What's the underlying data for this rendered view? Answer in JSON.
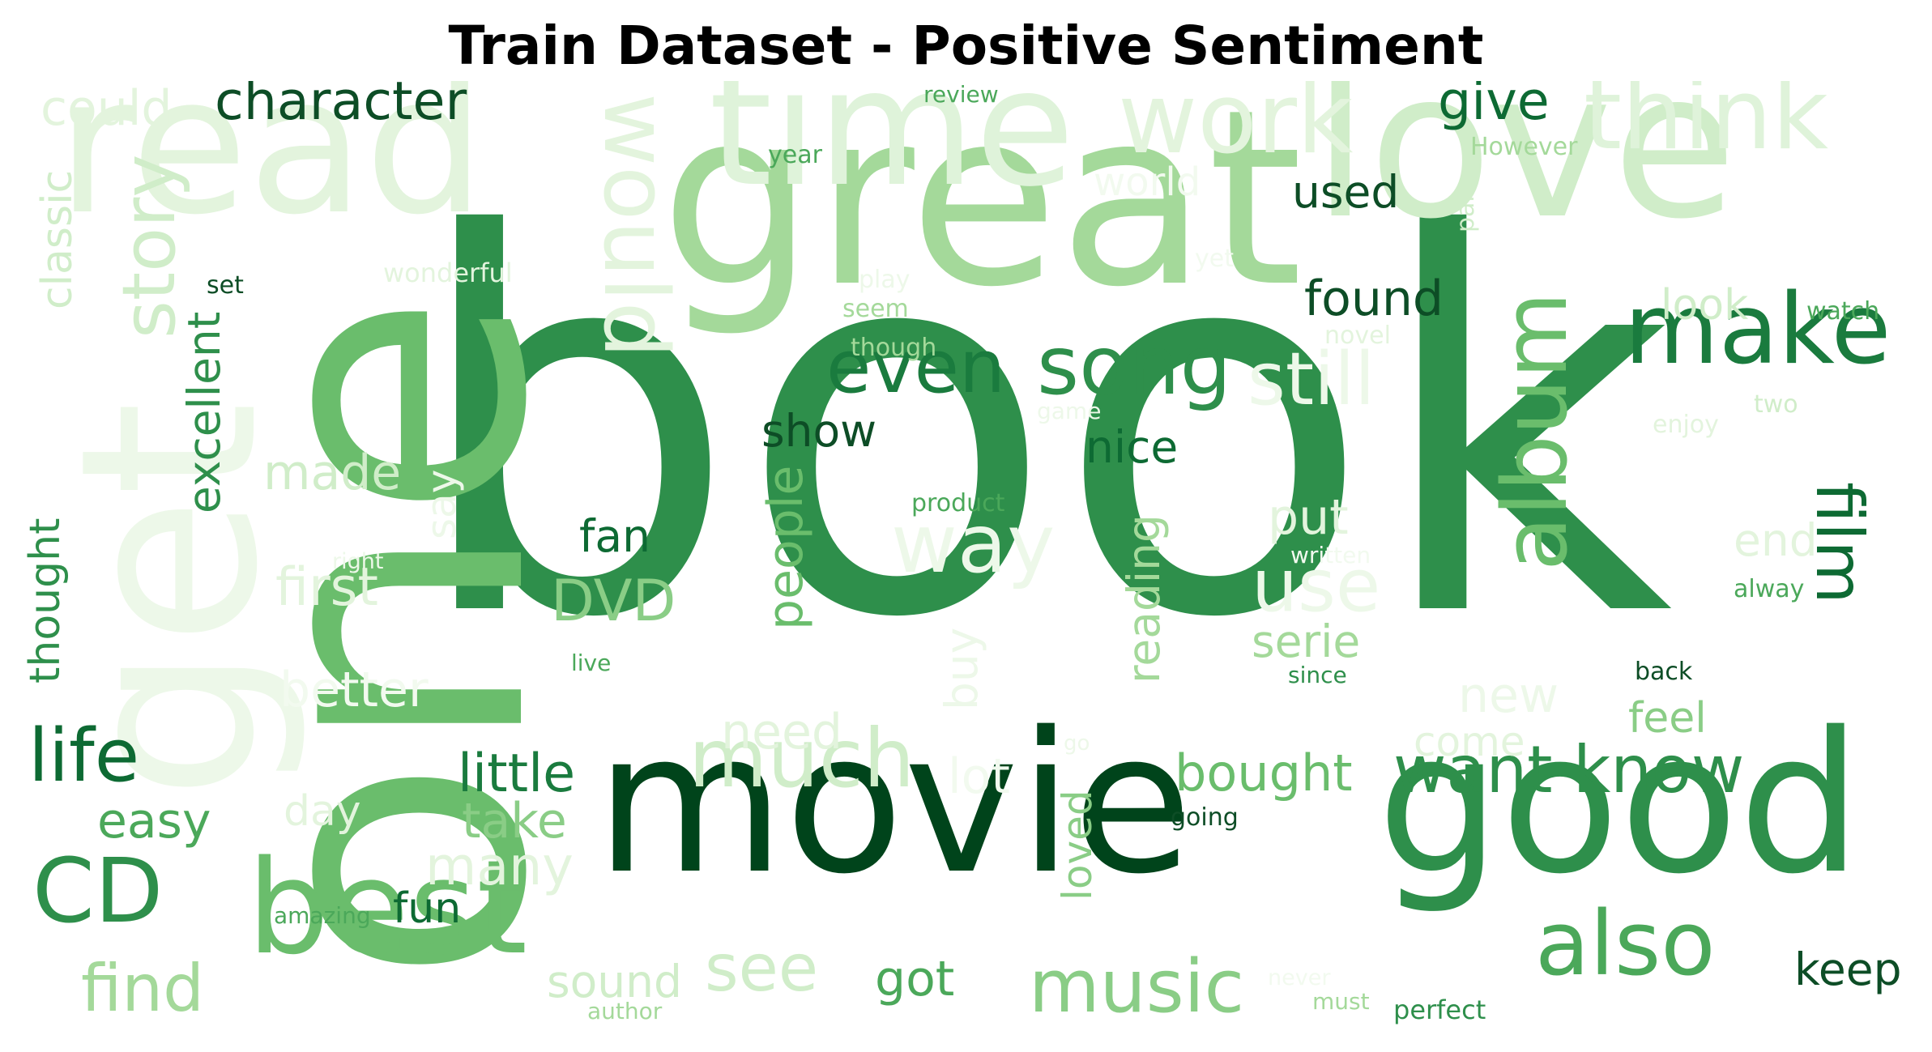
{
  "title": "Train Dataset - Positive Sentiment",
  "words": [
    {
      "text": "book",
      "color": "#2e8f4b",
      "rot": 0
    },
    {
      "text": "movie",
      "color": "#00441b",
      "rot": 0
    },
    {
      "text": "one",
      "color": "#6abd6c",
      "rot": -90
    },
    {
      "text": "great",
      "color": "#a4d99a",
      "rot": 0
    },
    {
      "text": "love",
      "color": "#d0edc9",
      "rot": 0
    },
    {
      "text": "read",
      "color": "#e3f4dd",
      "rot": 0
    },
    {
      "text": "good",
      "color": "#2e8f4b",
      "rot": 0
    },
    {
      "text": "time",
      "color": "#dff3da",
      "rot": 0
    },
    {
      "text": "get",
      "color": "#edf8e9",
      "rot": -90
    },
    {
      "text": "best",
      "color": "#6abd6c",
      "rot": 0
    },
    {
      "text": "make",
      "color": "#1a7b3e",
      "rot": 0
    },
    {
      "text": "album",
      "color": "#6abd6c",
      "rot": -90
    },
    {
      "text": "work",
      "color": "#e3f4dd",
      "rot": 0
    },
    {
      "text": "think",
      "color": "#dff3da",
      "rot": 0
    },
    {
      "text": "would",
      "color": "#e3f4dd",
      "rot": 90
    },
    {
      "text": "song",
      "color": "#2e8f4b",
      "rot": 0
    },
    {
      "text": "even",
      "color": "#1a7b3e",
      "rot": 0
    },
    {
      "text": "still",
      "color": "#edf8e9",
      "rot": 0
    },
    {
      "text": "story",
      "color": "#d0edc9",
      "rot": -90
    },
    {
      "text": "want know",
      "color": "#2e8f4b",
      "rot": 0
    },
    {
      "text": "also",
      "color": "#4ba85a",
      "rot": 0
    },
    {
      "text": "music",
      "color": "#8acd86",
      "rot": 0
    },
    {
      "text": "much",
      "color": "#d0edc9",
      "rot": 0
    },
    {
      "text": "CD",
      "color": "#2e8f4b",
      "rot": 0
    },
    {
      "text": "see",
      "color": "#d0edc9",
      "rot": 0
    },
    {
      "text": "film",
      "color": "#0d6a33",
      "rot": 90
    },
    {
      "text": "life",
      "color": "#0d6a33",
      "rot": 0
    },
    {
      "text": "find",
      "color": "#a4d99a",
      "rot": 0
    },
    {
      "text": "way",
      "color": "#edf8e9",
      "rot": 0
    },
    {
      "text": "use",
      "color": "#edf8e9",
      "rot": 0
    },
    {
      "text": "character",
      "color": "#0d4d26",
      "rot": 0
    },
    {
      "text": "could",
      "color": "#e3f4dd",
      "rot": 0
    },
    {
      "text": "give",
      "color": "#0d6a33",
      "rot": 0
    },
    {
      "text": "people",
      "color": "#6abd6c",
      "rot": -90
    },
    {
      "text": "excellent",
      "color": "#2e8f4b",
      "rot": -90
    },
    {
      "text": "classic",
      "color": "#d0edc9",
      "rot": -90
    },
    {
      "text": "thought",
      "color": "#2e8f4b",
      "rot": -90
    },
    {
      "text": "reading",
      "color": "#a4d99a",
      "rot": -90
    },
    {
      "text": "found",
      "color": "#0d4d26",
      "rot": 0
    },
    {
      "text": "look",
      "color": "#d0edc9",
      "rot": 0
    },
    {
      "text": "DVD",
      "color": "#8acd86",
      "rot": 0
    },
    {
      "text": "fan",
      "color": "#0d6a33",
      "rot": 0
    },
    {
      "text": "show",
      "color": "#0d4d26",
      "rot": 0
    },
    {
      "text": "nice",
      "color": "#0d6a33",
      "rot": 0
    },
    {
      "text": "put",
      "color": "#e3f4dd",
      "rot": 0
    },
    {
      "text": "first",
      "color": "#e3f4dd",
      "rot": 0
    },
    {
      "text": "made",
      "color": "#d0edc9",
      "rot": 0
    },
    {
      "text": "little",
      "color": "#1a7b3e",
      "rot": 0
    },
    {
      "text": "take",
      "color": "#8acd86",
      "rot": 0
    },
    {
      "text": "bought",
      "color": "#6abd6c",
      "rot": 0
    },
    {
      "text": "feel",
      "color": "#8acd86",
      "rot": 0
    },
    {
      "text": "need",
      "color": "#e3f4dd",
      "rot": 0
    },
    {
      "text": "lot",
      "color": "#f2faef",
      "rot": 0
    },
    {
      "text": "easy",
      "color": "#4ba85a",
      "rot": 0
    },
    {
      "text": "day",
      "color": "#e3f4dd",
      "rot": 0
    },
    {
      "text": "many",
      "color": "#e3f4dd",
      "rot": 0
    },
    {
      "text": "fun",
      "color": "#0d6a33",
      "rot": 0
    },
    {
      "text": "sound",
      "color": "#d0edc9",
      "rot": 0
    },
    {
      "text": "got",
      "color": "#4ba85a",
      "rot": 0
    },
    {
      "text": "keep",
      "color": "#0d4d26",
      "rot": 0
    },
    {
      "text": "serie",
      "color": "#a4d99a",
      "rot": 0
    },
    {
      "text": "end",
      "color": "#e3f4dd",
      "rot": 0
    },
    {
      "text": "new",
      "color": "#edf8e9",
      "rot": 0
    },
    {
      "text": "come",
      "color": "#e3f4dd",
      "rot": 0
    },
    {
      "text": "better",
      "color": "#f2faef",
      "rot": 0
    },
    {
      "text": "used",
      "color": "#0d4d26",
      "rot": 0
    },
    {
      "text": "buy",
      "color": "#edf8e9",
      "rot": -90
    },
    {
      "text": "say",
      "color": "#edf8e9",
      "rot": -90
    },
    {
      "text": "loved",
      "color": "#8acd86",
      "rot": -90
    },
    {
      "text": "world",
      "color": "#f2faef",
      "rot": 0
    },
    {
      "text": "review",
      "color": "#4ba85a",
      "rot": 0
    },
    {
      "text": "year",
      "color": "#4ba85a",
      "rot": 0
    },
    {
      "text": "However",
      "color": "#a4d99a",
      "rot": 0
    },
    {
      "text": "part",
      "color": "#d0edc9",
      "rot": -90
    },
    {
      "text": "wonderful",
      "color": "#e3f4dd",
      "rot": 0
    },
    {
      "text": "set",
      "color": "#0d4d26",
      "rot": 0
    },
    {
      "text": "play",
      "color": "#edf8e9",
      "rot": 0
    },
    {
      "text": "seem",
      "color": "#a4d99a",
      "rot": 0
    },
    {
      "text": "though",
      "color": "#a4d99a",
      "rot": 0
    },
    {
      "text": "yet",
      "color": "#f2faef",
      "rot": 0
    },
    {
      "text": "novel",
      "color": "#e3f4dd",
      "rot": 0
    },
    {
      "text": "watch",
      "color": "#4ba85a",
      "rot": 0
    },
    {
      "text": "two",
      "color": "#d0edc9",
      "rot": 0
    },
    {
      "text": "enjoy",
      "color": "#e3f4dd",
      "rot": 0
    },
    {
      "text": "game",
      "color": "#edf8e9",
      "rot": 0
    },
    {
      "text": "product",
      "color": "#4ba85a",
      "rot": 0
    },
    {
      "text": "right",
      "color": "#edf8e9",
      "rot": 0
    },
    {
      "text": "written",
      "color": "#f2faef",
      "rot": 0
    },
    {
      "text": "alway",
      "color": "#4ba85a",
      "rot": 0
    },
    {
      "text": "since",
      "color": "#2e8f4b",
      "rot": 0
    },
    {
      "text": "back",
      "color": "#0d4d26",
      "rot": 0
    },
    {
      "text": "live",
      "color": "#4ba85a",
      "rot": 0
    },
    {
      "text": "go",
      "color": "#edf8e9",
      "rot": 0
    },
    {
      "text": "going",
      "color": "#0d4d26",
      "rot": 0
    },
    {
      "text": "amazing",
      "color": "#4ba85a",
      "rot": 0
    },
    {
      "text": "never",
      "color": "#f2faef",
      "rot": 0
    },
    {
      "text": "must",
      "color": "#a4d99a",
      "rot": 0
    },
    {
      "text": "author",
      "color": "#a4d99a",
      "rot": 0
    },
    {
      "text": "perfect",
      "color": "#2e8f4b",
      "rot": 0
    }
  ]
}
